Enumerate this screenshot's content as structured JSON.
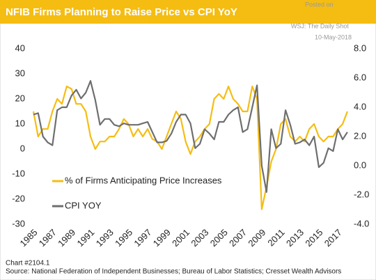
{
  "chart_data": {
    "type": "line",
    "title": "NFIB Firms Planning to Raise Price vs CPI YoY",
    "watermark": [
      "Posted on",
      "WSJ: The Daily Shot",
      "10-May-2018"
    ],
    "footnotes": [
      "Chart #2104.1",
      "Source: National Federation of Independent Businesses; Bureau of Labor Statistics; Cresset Wealth Advisors"
    ],
    "x": [
      1985,
      1985.5,
      1986,
      1986.5,
      1987,
      1987.5,
      1988,
      1988.5,
      1989,
      1989.5,
      1990,
      1990.5,
      1991,
      1991.5,
      1992,
      1992.5,
      1993,
      1993.5,
      1994,
      1994.5,
      1995,
      1995.5,
      1996,
      1996.5,
      1997,
      1997.5,
      1998,
      1998.5,
      1999,
      1999.5,
      2000,
      2000.5,
      2001,
      2001.5,
      2002,
      2002.5,
      2003,
      2003.5,
      2004,
      2004.5,
      2005,
      2005.5,
      2006,
      2006.5,
      2007,
      2007.5,
      2008,
      2008.5,
      2009,
      2009.5,
      2010,
      2010.5,
      2011,
      2011.5,
      2012,
      2012.5,
      2013,
      2013.5,
      2014,
      2014.5,
      2015,
      2015.5,
      2016,
      2016.5,
      2017,
      2017.5,
      2018
    ],
    "series": [
      {
        "name": "% of Firms Anticipating Price Increases",
        "color": "#f5bd12",
        "values": [
          15,
          5,
          8,
          8,
          15,
          20,
          18,
          25,
          24,
          18,
          18,
          15,
          5,
          0,
          3,
          3,
          5,
          5,
          8,
          12,
          10,
          5,
          8,
          5,
          8,
          4,
          3,
          0,
          5,
          10,
          15,
          12,
          3,
          -2,
          3,
          5,
          8,
          10,
          20,
          22,
          20,
          25,
          20,
          18,
          15,
          15,
          25,
          20,
          -24,
          -15,
          -5,
          0,
          10,
          12,
          5,
          3,
          5,
          3,
          8,
          10,
          5,
          3,
          5,
          5,
          8,
          10,
          15
        ]
      },
      {
        "name": "CPI YOY",
        "color": "#6e6e6e",
        "axis": "y2",
        "values": [
          3.5,
          3.6,
          2,
          1.6,
          1.4,
          3.8,
          4,
          4,
          4.8,
          5.2,
          4.6,
          5,
          5.8,
          4.5,
          2.8,
          3.2,
          3.2,
          2.8,
          2.7,
          2.9,
          2.8,
          2.8,
          2.8,
          2.9,
          3,
          2.3,
          1.6,
          1.6,
          1.7,
          2.2,
          3,
          3.5,
          3.5,
          2.9,
          1.2,
          1.5,
          2.5,
          2.2,
          1.8,
          3,
          3,
          3.5,
          3.8,
          4,
          2.3,
          2.5,
          4,
          5.5,
          0,
          -1.8,
          2.5,
          1.2,
          1.5,
          3.8,
          2.8,
          1.5,
          1.6,
          1.8,
          1.4,
          2,
          -0.1,
          0.2,
          1.2,
          1,
          2.5,
          1.8,
          2.3
        ]
      }
    ],
    "xlim": [
      1985,
      2018.3
    ],
    "xticks": [
      1985,
      1987,
      1989,
      1991,
      1993,
      1995,
      1997,
      1999,
      2001,
      2003,
      2005,
      2007,
      2009,
      2011,
      2013,
      2015,
      2017
    ],
    "ylim": [
      -30,
      40
    ],
    "yticks": [
      -30,
      -20,
      -10,
      0,
      10,
      20,
      30,
      40
    ],
    "y2lim": [
      -4,
      8
    ],
    "y2ticks": [
      {
        "value": -4,
        "label": "-4.0"
      },
      {
        "value": -2,
        "label": "-2.0"
      },
      {
        "value": 0,
        "label": "0.0"
      },
      {
        "value": 2,
        "label": "2.0"
      },
      {
        "value": 4,
        "label": "4.0"
      },
      {
        "value": 6,
        "label": "6.0"
      },
      {
        "value": 8,
        "label": "8.0"
      }
    ],
    "grid": false,
    "legend": "lower left"
  }
}
